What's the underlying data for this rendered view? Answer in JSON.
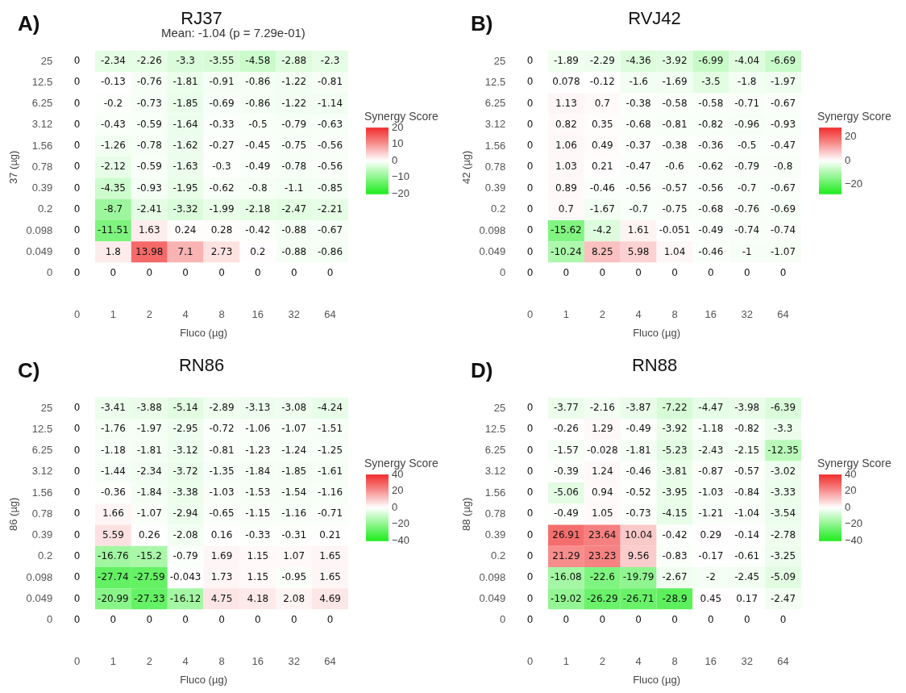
{
  "chart_data": [
    {
      "type": "heatmap",
      "title": "RJ37",
      "annotations": [
        "A)",
        "Mean: -1.04 (p = 7.29e-01)"
      ],
      "xlabel": "Fluco (µg)",
      "ylabel": "37 (µg)",
      "clabel": "Synergy Score",
      "data_labels": true,
      "clim": [
        -20,
        20
      ],
      "cticks": [
        -20,
        -10,
        0,
        10,
        20
      ],
      "categories": [
        "0",
        "1",
        "2",
        "4",
        "8",
        "16",
        "32",
        "64"
      ],
      "y_categories": [
        "25",
        "12.5",
        "6.25",
        "3.12",
        "1.56",
        "0.78",
        "0.39",
        "0.2",
        "0.098",
        "0.049",
        "0"
      ],
      "cells": [
        [
          0,
          -2.34,
          -2.26,
          -3.3,
          -3.55,
          -4.58,
          -2.88,
          -2.3
        ],
        [
          0,
          -0.13,
          -0.76,
          -1.81,
          -0.91,
          -0.86,
          -1.22,
          -0.81
        ],
        [
          0,
          -0.2,
          -0.73,
          -1.85,
          -0.69,
          -0.86,
          -1.22,
          -1.14
        ],
        [
          0,
          -0.43,
          -0.59,
          -1.64,
          -0.33,
          -0.5,
          -0.79,
          -0.63
        ],
        [
          0,
          -1.26,
          -0.78,
          -1.62,
          -0.27,
          -0.45,
          -0.75,
          -0.56
        ],
        [
          0,
          -2.12,
          -0.59,
          -1.63,
          -0.3,
          -0.49,
          -0.78,
          -0.56
        ],
        [
          0,
          -4.35,
          -0.93,
          -1.95,
          -0.62,
          -0.8,
          -1.1,
          -0.85
        ],
        [
          0,
          -8.7,
          -2.41,
          -3.32,
          -1.99,
          -2.18,
          -2.47,
          -2.21
        ],
        [
          0,
          -11.51,
          1.63,
          0.24,
          0.28,
          -0.42,
          -0.88,
          -0.67
        ],
        [
          0,
          1.8,
          13.98,
          7.1,
          2.73,
          0.2,
          -0.88,
          -0.86
        ],
        [
          0,
          0,
          0,
          0,
          0,
          0,
          0,
          0
        ]
      ]
    },
    {
      "type": "heatmap",
      "title": "RVJ42",
      "annotations": [
        "B)"
      ],
      "xlabel": "Fluco (µg)",
      "ylabel": "42 (µg)",
      "clabel": "Synergy Score",
      "data_labels": true,
      "clim": [
        -28,
        28
      ],
      "cticks": [
        -20,
        0,
        20
      ],
      "categories": [
        "0",
        "1",
        "2",
        "4",
        "8",
        "16",
        "32",
        "64"
      ],
      "y_categories": [
        "25",
        "12.5",
        "6.25",
        "3.12",
        "1.56",
        "0.78",
        "0.39",
        "0.2",
        "0.098",
        "0.049",
        "0"
      ],
      "cells": [
        [
          0,
          -1.89,
          -2.29,
          -4.36,
          -3.92,
          -6.99,
          -4.04,
          -6.69
        ],
        [
          0,
          0.078,
          -0.12,
          -1.6,
          -1.69,
          -3.5,
          -1.8,
          -1.97
        ],
        [
          0,
          1.13,
          0.7,
          -0.38,
          -0.58,
          -0.58,
          -0.71,
          -0.67
        ],
        [
          0,
          0.82,
          0.35,
          -0.68,
          -0.81,
          -0.82,
          -0.96,
          -0.93
        ],
        [
          0,
          1.06,
          0.49,
          -0.37,
          -0.38,
          -0.36,
          -0.5,
          -0.47
        ],
        [
          0,
          1.03,
          0.21,
          -0.47,
          -0.6,
          -0.62,
          -0.79,
          -0.8
        ],
        [
          0,
          0.89,
          -0.46,
          -0.56,
          -0.57,
          -0.56,
          -0.7,
          -0.67
        ],
        [
          0,
          0.7,
          -1.67,
          -0.7,
          -0.75,
          -0.68,
          -0.76,
          -0.69
        ],
        [
          0,
          -15.62,
          -4.2,
          1.61,
          -0.051,
          -0.49,
          -0.74,
          -0.74
        ],
        [
          0,
          -10.24,
          8.25,
          5.98,
          1.04,
          -0.46,
          -1,
          -1.07
        ],
        [
          0,
          0,
          0,
          0,
          0,
          0,
          0,
          0
        ]
      ]
    },
    {
      "type": "heatmap",
      "title": "RN86",
      "annotations": [
        "C)"
      ],
      "xlabel": "Fluco (µg)",
      "ylabel": "86 (µg)",
      "clabel": "Synergy Score",
      "data_labels": true,
      "clim": [
        -40,
        40
      ],
      "cticks": [
        -40,
        -20,
        0,
        20,
        40
      ],
      "categories": [
        "0",
        "1",
        "2",
        "4",
        "8",
        "16",
        "32",
        "64"
      ],
      "y_categories": [
        "25",
        "12.5",
        "6.25",
        "3.12",
        "1.56",
        "0.78",
        "0.39",
        "0.2",
        "0.098",
        "0.049",
        "0"
      ],
      "cells": [
        [
          0,
          -3.41,
          -3.88,
          -5.14,
          -2.89,
          -3.13,
          -3.08,
          -4.24
        ],
        [
          0,
          -1.76,
          -1.97,
          -2.95,
          -0.72,
          -1.06,
          -1.07,
          -1.51
        ],
        [
          0,
          -1.18,
          -1.81,
          -3.12,
          -0.81,
          -1.23,
          -1.24,
          -1.25
        ],
        [
          0,
          -1.44,
          -2.34,
          -3.72,
          -1.35,
          -1.84,
          -1.85,
          -1.61
        ],
        [
          0,
          -0.36,
          -1.84,
          -3.38,
          -1.03,
          -1.53,
          -1.54,
          -1.16
        ],
        [
          0,
          1.66,
          -1.07,
          -2.94,
          -0.65,
          -1.15,
          -1.16,
          -0.71
        ],
        [
          0,
          5.59,
          0.26,
          -2.08,
          0.16,
          -0.33,
          -0.31,
          0.21
        ],
        [
          0,
          -16.76,
          -15.2,
          -0.79,
          1.69,
          1.15,
          1.07,
          1.65
        ],
        [
          0,
          -27.74,
          -27.59,
          -0.043,
          1.73,
          1.15,
          -0.95,
          1.65
        ],
        [
          0,
          -20.99,
          -27.33,
          -16.12,
          4.75,
          4.18,
          2.08,
          4.69
        ],
        [
          0,
          0,
          0,
          0,
          0,
          0,
          0,
          0
        ]
      ]
    },
    {
      "type": "heatmap",
      "title": "RN88",
      "annotations": [
        "D)"
      ],
      "xlabel": "Fluco (µg)",
      "ylabel": "88 (µg)",
      "clabel": "Synergy Score",
      "data_labels": true,
      "clim": [
        -40,
        40
      ],
      "cticks": [
        -40,
        -20,
        0,
        20,
        40
      ],
      "categories": [
        "0",
        "1",
        "2",
        "4",
        "8",
        "16",
        "32",
        "64"
      ],
      "y_categories": [
        "25",
        "12.5",
        "6.25",
        "3.12",
        "1.56",
        "0.78",
        "0.39",
        "0.2",
        "0.098",
        "0.049",
        "0"
      ],
      "cells": [
        [
          0,
          -3.77,
          -2.16,
          -3.87,
          -7.22,
          -4.47,
          -3.98,
          -6.39
        ],
        [
          0,
          -0.26,
          1.29,
          -0.49,
          -3.92,
          -1.18,
          -0.82,
          -3.3
        ],
        [
          0,
          -1.57,
          -0.028,
          -1.81,
          -5.23,
          -2.43,
          -2.15,
          -12.35
        ],
        [
          0,
          -0.39,
          1.24,
          -0.46,
          -3.81,
          -0.87,
          -0.57,
          -3.02
        ],
        [
          0,
          -5.06,
          0.94,
          -0.52,
          -3.95,
          -1.03,
          -0.84,
          -3.33
        ],
        [
          0,
          -0.49,
          1.05,
          -0.73,
          -4.15,
          -1.21,
          -1.04,
          -3.54
        ],
        [
          0,
          26.91,
          23.64,
          10.04,
          -0.42,
          0.29,
          -0.14,
          -2.78
        ],
        [
          0,
          21.29,
          23.23,
          9.56,
          -0.83,
          -0.17,
          -0.61,
          -3.25
        ],
        [
          0,
          -16.08,
          -22.6,
          -19.79,
          -2.67,
          -2,
          -2.45,
          -5.09
        ],
        [
          0,
          -19.02,
          -26.29,
          -26.71,
          -28.9,
          0.45,
          0.17,
          -2.47
        ],
        [
          0,
          0,
          0,
          0,
          0,
          0,
          0,
          0
        ]
      ]
    }
  ]
}
